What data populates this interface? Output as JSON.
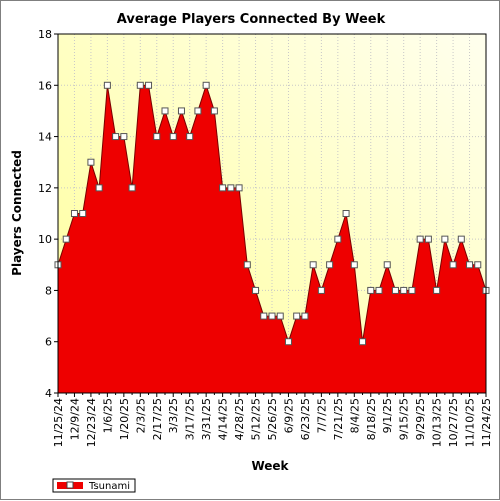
{
  "chart_data": {
    "type": "area",
    "title": "Average Players Connected By Week",
    "xlabel": "Week",
    "ylabel": "Players Connected",
    "ylim": [
      4,
      18
    ],
    "yticks": [
      4,
      6,
      8,
      10,
      12,
      14,
      16,
      18
    ],
    "x": [
      "11/25/24",
      "12/2/24",
      "12/9/24",
      "12/16/24",
      "12/23/24",
      "12/30/24",
      "1/6/25",
      "1/13/25",
      "1/20/25",
      "1/27/25",
      "2/3/25",
      "2/10/25",
      "2/17/25",
      "2/24/25",
      "3/3/25",
      "3/10/25",
      "3/17/25",
      "3/24/25",
      "3/31/25",
      "4/7/25",
      "4/14/25",
      "4/21/25",
      "4/28/25",
      "5/5/25",
      "5/12/25",
      "5/19/25",
      "5/26/25",
      "6/2/25",
      "6/9/25",
      "6/16/25",
      "6/23/25",
      "6/30/25",
      "7/7/25",
      "7/14/25",
      "7/21/25",
      "7/28/25",
      "8/4/25",
      "8/11/25",
      "8/18/25",
      "8/25/25",
      "9/1/25",
      "9/8/25",
      "9/15/25",
      "9/22/25",
      "9/29/25",
      "10/6/25",
      "10/13/25",
      "10/20/25",
      "10/27/25",
      "11/3/25",
      "11/10/25",
      "11/17/25",
      "11/24/25"
    ],
    "x_tick_labels": [
      "11/25/24",
      "12/9/24",
      "12/23/24",
      "1/6/25",
      "1/20/25",
      "2/3/25",
      "2/17/25",
      "3/3/25",
      "3/17/25",
      "3/31/25",
      "4/14/25",
      "4/28/25",
      "5/12/25",
      "5/26/25",
      "6/9/25",
      "6/23/25",
      "7/7/25",
      "7/21/25",
      "8/4/25",
      "8/18/25",
      "9/1/25",
      "9/15/25",
      "9/29/25",
      "10/13/25",
      "10/27/25",
      "11/10/25",
      "11/24/25"
    ],
    "series": [
      {
        "name": "Tsunami",
        "color": "#ee0000",
        "values": [
          9,
          10,
          11,
          11,
          13,
          12,
          16,
          14,
          14,
          12,
          16,
          16,
          14,
          15,
          14,
          15,
          14,
          15,
          16,
          15,
          12,
          12,
          12,
          9,
          8,
          7,
          7,
          7,
          6,
          7,
          7,
          9,
          8,
          9,
          10,
          11,
          9,
          6,
          8,
          8,
          9,
          8,
          8,
          8,
          10,
          10,
          8,
          10,
          9,
          10,
          9,
          9,
          8
        ]
      }
    ],
    "grid": true,
    "legend": "bottom-left"
  }
}
